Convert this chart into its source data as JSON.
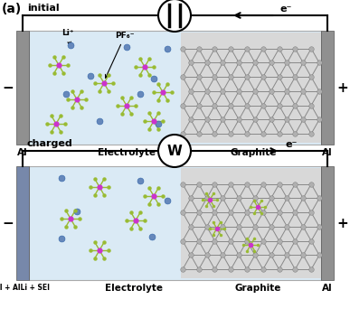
{
  "fig_width": 3.87,
  "fig_height": 3.52,
  "bg_color": "#ffffff",
  "electrolyte_color": "#daeaf5",
  "electrode_gray": "#909090",
  "electrode_blue_gray": "#7788aa",
  "graphite_sphere": "#b0b0b0",
  "graphite_bond": "#888888",
  "li_color": "#6688bb",
  "p_color": "#cc33cc",
  "f_color": "#99bb33",
  "black": "#000000",
  "label_a": "(a)",
  "label_initial": "initial",
  "label_charged": "charged",
  "label_al": "Al",
  "label_electrolyte": "Electrolyte",
  "label_graphite": "Graphite",
  "label_al_charged": "Al + AlLi + SEI",
  "label_minus": "−",
  "label_plus": "+",
  "label_li": "Li⁺",
  "label_pf6": "PF₆⁻",
  "label_eminus": "e⁻"
}
